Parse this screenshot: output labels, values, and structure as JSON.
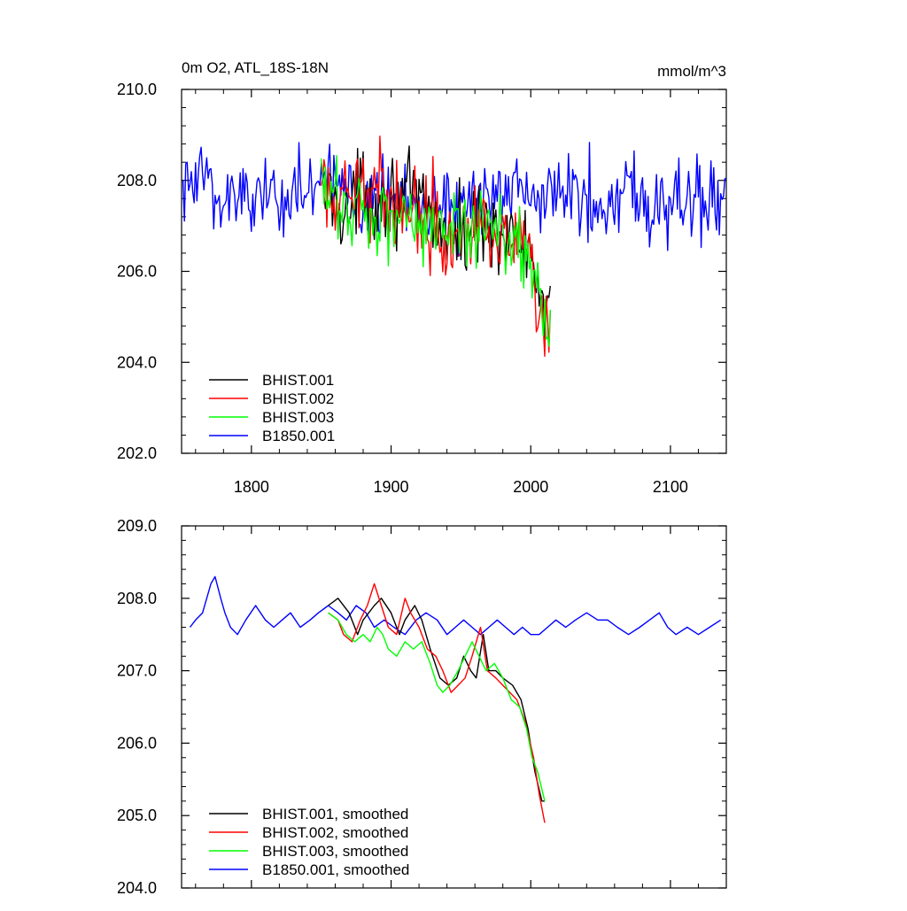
{
  "colors": {
    "BHIST.001": "#000000",
    "BHIST.002": "#ff0000",
    "BHIST.003": "#00ff00",
    "B1850.001": "#0000ff"
  },
  "chart_data": [
    {
      "type": "line",
      "title_left": "0m O2, ATL_18S-18N",
      "title_right": "mmol/m^3",
      "xlim": [
        1750,
        2140
      ],
      "ylim": [
        202,
        210
      ],
      "xticks": [
        1800,
        1900,
        2000,
        2100
      ],
      "xtick_labels": [
        "1800",
        "1900",
        "2000",
        "2100"
      ],
      "yticks": [
        202,
        204,
        206,
        208,
        210
      ],
      "ytick_labels": [
        "202.0",
        "204.0",
        "206.0",
        "208.0",
        "210.0"
      ],
      "legend_position": "bottom-left",
      "grid": false,
      "series": [
        {
          "name": "BHIST.001",
          "color": "#000000",
          "x_start": 1850,
          "x_end": 2014,
          "points": [
            [
              1850,
              207.8
            ],
            [
              1860,
              207.6
            ],
            [
              1870,
              207.2
            ],
            [
              1880,
              207.9
            ],
            [
              1890,
              207.6
            ],
            [
              1900,
              207.7
            ],
            [
              1910,
              207.6
            ],
            [
              1920,
              207.5
            ],
            [
              1930,
              207.2
            ],
            [
              1940,
              206.8
            ],
            [
              1950,
              206.8
            ],
            [
              1960,
              207.0
            ],
            [
              1970,
              207.2
            ],
            [
              1980,
              206.8
            ],
            [
              1990,
              206.6
            ],
            [
              2000,
              206.5
            ],
            [
              2005,
              205.5
            ],
            [
              2010,
              204.5
            ],
            [
              2014,
              205.2
            ]
          ],
          "variability": 0.65
        },
        {
          "name": "BHIST.002",
          "color": "#ff0000",
          "x_start": 1850,
          "x_end": 2014,
          "points": [
            [
              1850,
              207.7
            ],
            [
              1860,
              207.5
            ],
            [
              1870,
              207.3
            ],
            [
              1880,
              208.0
            ],
            [
              1890,
              207.8
            ],
            [
              1900,
              207.6
            ],
            [
              1910,
              207.5
            ],
            [
              1920,
              207.3
            ],
            [
              1930,
              207.2
            ],
            [
              1940,
              206.9
            ],
            [
              1950,
              206.9
            ],
            [
              1960,
              207.1
            ],
            [
              1970,
              207.2
            ],
            [
              1980,
              206.7
            ],
            [
              1990,
              206.5
            ],
            [
              2000,
              206.3
            ],
            [
              2005,
              205.0
            ],
            [
              2010,
              204.5
            ],
            [
              2014,
              204.2
            ]
          ],
          "variability": 0.7
        },
        {
          "name": "BHIST.003",
          "color": "#00ff00",
          "x_start": 1850,
          "x_end": 2014,
          "points": [
            [
              1850,
              207.8
            ],
            [
              1860,
              207.5
            ],
            [
              1870,
              207.4
            ],
            [
              1880,
              207.4
            ],
            [
              1890,
              207.2
            ],
            [
              1900,
              207.2
            ],
            [
              1910,
              207.3
            ],
            [
              1920,
              207.2
            ],
            [
              1930,
              207.0
            ],
            [
              1940,
              206.7
            ],
            [
              1950,
              206.9
            ],
            [
              1960,
              207.0
            ],
            [
              1970,
              207.2
            ],
            [
              1980,
              207.0
            ],
            [
              1990,
              206.6
            ],
            [
              2000,
              206.3
            ],
            [
              2005,
              205.5
            ],
            [
              2010,
              205.0
            ],
            [
              2014,
              204.8
            ]
          ],
          "variability": 0.65
        },
        {
          "name": "B1850.001",
          "color": "#0000ff",
          "x_start": 1751,
          "x_end": 2140,
          "points": [
            [
              1751,
              207.7
            ],
            [
              1770,
              208.1
            ],
            [
              1780,
              207.6
            ],
            [
              1800,
              207.7
            ],
            [
              1850,
              207.8
            ],
            [
              1900,
              207.7
            ],
            [
              1950,
              207.5
            ],
            [
              2000,
              207.6
            ],
            [
              2050,
              207.7
            ],
            [
              2100,
              207.6
            ],
            [
              2140,
              207.6
            ]
          ],
          "variability": 0.7
        }
      ]
    },
    {
      "type": "line",
      "xlim": [
        1750,
        2140
      ],
      "ylim": [
        204,
        209
      ],
      "xticks": [
        1800,
        1900,
        2000,
        2100
      ],
      "yticks": [
        204,
        205,
        206,
        207,
        208,
        209
      ],
      "ytick_labels": [
        "204.0",
        "205.0",
        "206.0",
        "207.0",
        "208.0",
        "209.0"
      ],
      "legend_position": "bottom-left",
      "grid": false,
      "series": [
        {
          "name": "BHIST.001, smoothed",
          "color": "#000000",
          "points": [
            [
              1855,
              207.9
            ],
            [
              1862,
              208.0
            ],
            [
              1870,
              207.8
            ],
            [
              1876,
              207.5
            ],
            [
              1880,
              207.7
            ],
            [
              1888,
              207.9
            ],
            [
              1893,
              208.0
            ],
            [
              1900,
              207.8
            ],
            [
              1906,
              207.5
            ],
            [
              1910,
              207.7
            ],
            [
              1917,
              207.9
            ],
            [
              1922,
              207.7
            ],
            [
              1928,
              207.3
            ],
            [
              1935,
              206.9
            ],
            [
              1941,
              206.8
            ],
            [
              1947,
              206.9
            ],
            [
              1952,
              207.2
            ],
            [
              1957,
              207.0
            ],
            [
              1961,
              206.9
            ],
            [
              1966,
              207.5
            ],
            [
              1970,
              207.0
            ],
            [
              1975,
              207.0
            ],
            [
              1980,
              206.9
            ],
            [
              1987,
              206.8
            ],
            [
              1993,
              206.6
            ],
            [
              1998,
              206.2
            ],
            [
              2003,
              205.6
            ],
            [
              2008,
              205.2
            ],
            [
              2010,
              205.2
            ]
          ]
        },
        {
          "name": "BHIST.002, smoothed",
          "color": "#ff0000",
          "points": [
            [
              1855,
              207.8
            ],
            [
              1862,
              207.7
            ],
            [
              1866,
              207.5
            ],
            [
              1872,
              207.4
            ],
            [
              1878,
              207.7
            ],
            [
              1883,
              207.9
            ],
            [
              1888,
              208.2
            ],
            [
              1893,
              207.9
            ],
            [
              1898,
              207.6
            ],
            [
              1904,
              207.5
            ],
            [
              1910,
              208.0
            ],
            [
              1914,
              207.8
            ],
            [
              1920,
              207.6
            ],
            [
              1926,
              207.3
            ],
            [
              1932,
              207.2
            ],
            [
              1937,
              207.0
            ],
            [
              1943,
              206.7
            ],
            [
              1948,
              206.8
            ],
            [
              1953,
              206.9
            ],
            [
              1958,
              207.2
            ],
            [
              1964,
              207.6
            ],
            [
              1969,
              207.0
            ],
            [
              1975,
              206.9
            ],
            [
              1980,
              206.8
            ],
            [
              1985,
              206.7
            ],
            [
              1990,
              206.6
            ],
            [
              1996,
              206.3
            ],
            [
              2002,
              205.8
            ],
            [
              2006,
              205.3
            ],
            [
              2010,
              204.9
            ]
          ]
        },
        {
          "name": "BHIST.003, smoothed",
          "color": "#00ff00",
          "points": [
            [
              1855,
              207.8
            ],
            [
              1862,
              207.7
            ],
            [
              1868,
              207.5
            ],
            [
              1874,
              207.4
            ],
            [
              1880,
              207.5
            ],
            [
              1885,
              207.4
            ],
            [
              1890,
              207.6
            ],
            [
              1894,
              207.5
            ],
            [
              1898,
              207.3
            ],
            [
              1904,
              207.2
            ],
            [
              1910,
              207.4
            ],
            [
              1916,
              207.3
            ],
            [
              1922,
              207.4
            ],
            [
              1928,
              207.1
            ],
            [
              1933,
              206.8
            ],
            [
              1937,
              206.7
            ],
            [
              1942,
              206.8
            ],
            [
              1948,
              207.0
            ],
            [
              1953,
              207.2
            ],
            [
              1958,
              207.4
            ],
            [
              1963,
              207.2
            ],
            [
              1968,
              207.0
            ],
            [
              1974,
              207.1
            ],
            [
              1980,
              206.9
            ],
            [
              1986,
              206.6
            ],
            [
              1992,
              206.5
            ],
            [
              1997,
              206.2
            ],
            [
              2001,
              205.8
            ],
            [
              2005,
              205.6
            ],
            [
              2010,
              205.2
            ]
          ]
        },
        {
          "name": "B1850.001, smoothed",
          "color": "#0000ff",
          "points": [
            [
              1756,
              207.6
            ],
            [
              1760,
              207.7
            ],
            [
              1765,
              207.8
            ],
            [
              1771,
              208.2
            ],
            [
              1774,
              208.3
            ],
            [
              1778,
              208.0
            ],
            [
              1781,
              207.8
            ],
            [
              1785,
              207.6
            ],
            [
              1790,
              207.5
            ],
            [
              1796,
              207.7
            ],
            [
              1803,
              207.9
            ],
            [
              1810,
              207.7
            ],
            [
              1816,
              207.6
            ],
            [
              1822,
              207.7
            ],
            [
              1828,
              207.8
            ],
            [
              1835,
              207.6
            ],
            [
              1842,
              207.7
            ],
            [
              1848,
              207.8
            ],
            [
              1855,
              207.9
            ],
            [
              1862,
              207.8
            ],
            [
              1868,
              207.7
            ],
            [
              1875,
              207.9
            ],
            [
              1882,
              207.8
            ],
            [
              1888,
              207.6
            ],
            [
              1895,
              207.7
            ],
            [
              1902,
              207.6
            ],
            [
              1910,
              207.5
            ],
            [
              1918,
              207.7
            ],
            [
              1925,
              207.8
            ],
            [
              1933,
              207.7
            ],
            [
              1940,
              207.5
            ],
            [
              1946,
              207.6
            ],
            [
              1952,
              207.7
            ],
            [
              1958,
              207.6
            ],
            [
              1964,
              207.5
            ],
            [
              1970,
              207.6
            ],
            [
              1976,
              207.7
            ],
            [
              1982,
              207.6
            ],
            [
              1988,
              207.5
            ],
            [
              1994,
              207.6
            ],
            [
              2000,
              207.5
            ],
            [
              2006,
              207.5
            ],
            [
              2012,
              207.6
            ],
            [
              2018,
              207.7
            ],
            [
              2025,
              207.6
            ],
            [
              2032,
              207.7
            ],
            [
              2040,
              207.8
            ],
            [
              2048,
              207.7
            ],
            [
              2055,
              207.7
            ],
            [
              2062,
              207.6
            ],
            [
              2070,
              207.5
            ],
            [
              2078,
              207.6
            ],
            [
              2085,
              207.7
            ],
            [
              2092,
              207.8
            ],
            [
              2098,
              207.6
            ],
            [
              2104,
              207.5
            ],
            [
              2112,
              207.6
            ],
            [
              2120,
              207.5
            ],
            [
              2128,
              207.6
            ],
            [
              2136,
              207.7
            ]
          ]
        }
      ]
    }
  ]
}
